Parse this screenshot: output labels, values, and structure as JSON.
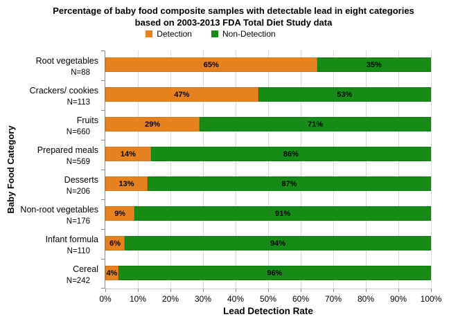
{
  "title": {
    "line1": "Percentage of baby food composite samples with detectable lead in eight categories",
    "line2": "based on 2003-2013 FDA Total Diet Study data"
  },
  "legend": [
    {
      "label": "Detection",
      "color": "#E8821E"
    },
    {
      "label": "Non-Detection",
      "color": "#168C16"
    }
  ],
  "colors": {
    "detection": "#E8821E",
    "non_detection": "#168C16",
    "axis": "#898989",
    "gridline": "#dadada",
    "label_text": "#000000"
  },
  "chart_data": {
    "type": "bar",
    "orientation": "horizontal",
    "stacked": true,
    "title": "Percentage of baby food composite samples with detectable lead in eight categories based on 2003-2013 FDA Total Diet Study data",
    "categories": [
      "Root vegetables",
      "Crackers/ cookies",
      "Fruits",
      "Prepared meals",
      "Desserts",
      "Non-root vegetables",
      "Infant formula",
      "Cereal"
    ],
    "sample_sizes": [
      "N=88",
      "N=113",
      "N=660",
      "N=569",
      "N=206",
      "N=176",
      "N=110",
      "N=242"
    ],
    "series": [
      {
        "name": "Detection",
        "color": "#E8821E",
        "values": [
          65,
          47,
          29,
          14,
          13,
          9,
          6,
          4
        ]
      },
      {
        "name": "Non-Detection",
        "color": "#168C16",
        "values": [
          35,
          53,
          71,
          86,
          87,
          91,
          94,
          96
        ]
      }
    ],
    "value_suffix": "%",
    "xlabel": "Lead Detection Rate",
    "ylabel": "Baby Food Category",
    "x_ticks": [
      "0%",
      "10%",
      "20%",
      "30%",
      "40%",
      "50%",
      "60%",
      "70%",
      "80%",
      "90%",
      "100%"
    ],
    "xlim": [
      0,
      100
    ],
    "grid": true,
    "legend_position": "top"
  }
}
